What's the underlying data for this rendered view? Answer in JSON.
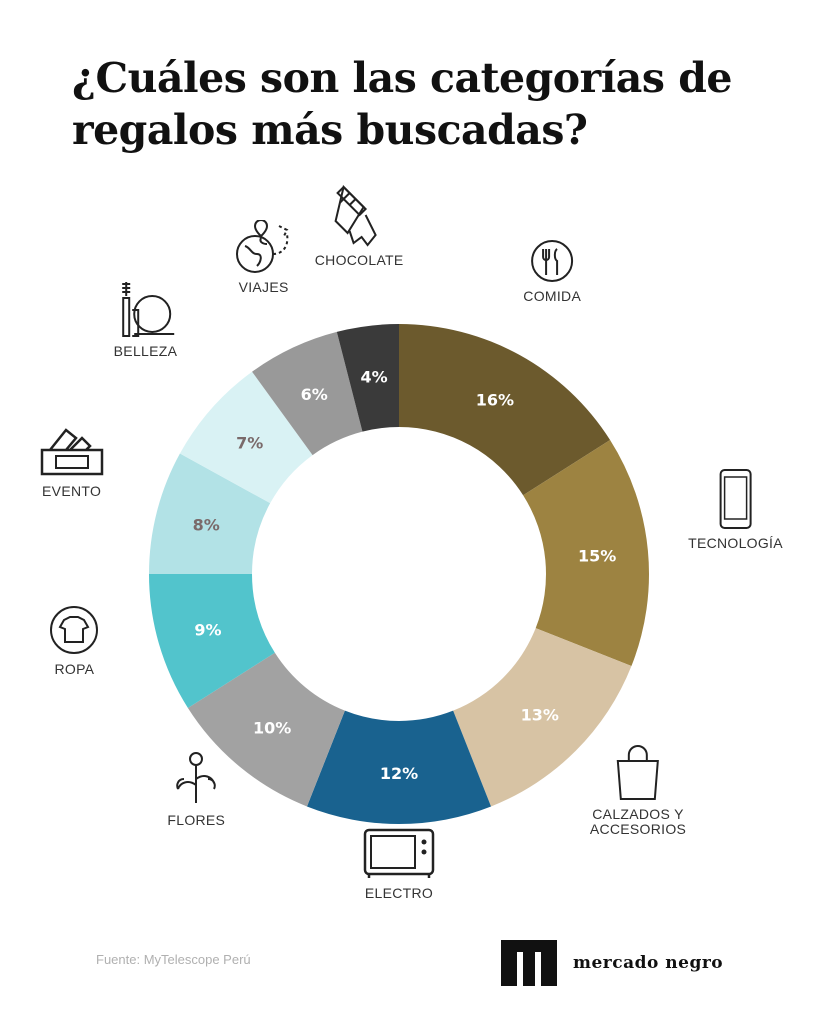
{
  "title": "¿Cuáles son las categorías de regalos más buscadas?",
  "source": "Fuente: MyTelescope Perú",
  "brand": "mercado negro",
  "chart_data": {
    "type": "pie",
    "donut": true,
    "start": "top",
    "direction": "clockwise",
    "categories": [
      "COMIDA",
      "TECNOLOGÍA",
      "CALZADOS Y\nACCESORIOS",
      "ELECTRO",
      "FLORES",
      "ROPA",
      "EVENTO",
      "BELLEZA",
      "VIAJES",
      "CHOCOLATE"
    ],
    "values": [
      16,
      15,
      13,
      12,
      10,
      9,
      8,
      7,
      6,
      4
    ],
    "labels": [
      "16%",
      "15%",
      "13%",
      "12%",
      "10%",
      "9%",
      "8%",
      "7%",
      "6%",
      "4%"
    ],
    "colors": [
      "#6c5a2d",
      "#9d8341",
      "#d7c3a4",
      "#19628f",
      "#a2a2a2",
      "#52c4cc",
      "#b2e2e6",
      "#d9f2f4",
      "#999999",
      "#3a3a3a"
    ],
    "label_colors": [
      "#ffffff",
      "#ffffff",
      "#ffffff",
      "#ffffff",
      "#ffffff",
      "#ffffff",
      "#7a6a6a",
      "#7a6a6a",
      "#ffffff",
      "#ffffff"
    ],
    "icons": [
      "fork-knife-icon",
      "smartphone-icon",
      "shopping-bag-icon",
      "microwave-icon",
      "flowers-icon",
      "tshirt-icon",
      "ticket-icon",
      "mirror-makeup-icon",
      "globe-plane-icon",
      "chocolate-bar-icon"
    ]
  }
}
